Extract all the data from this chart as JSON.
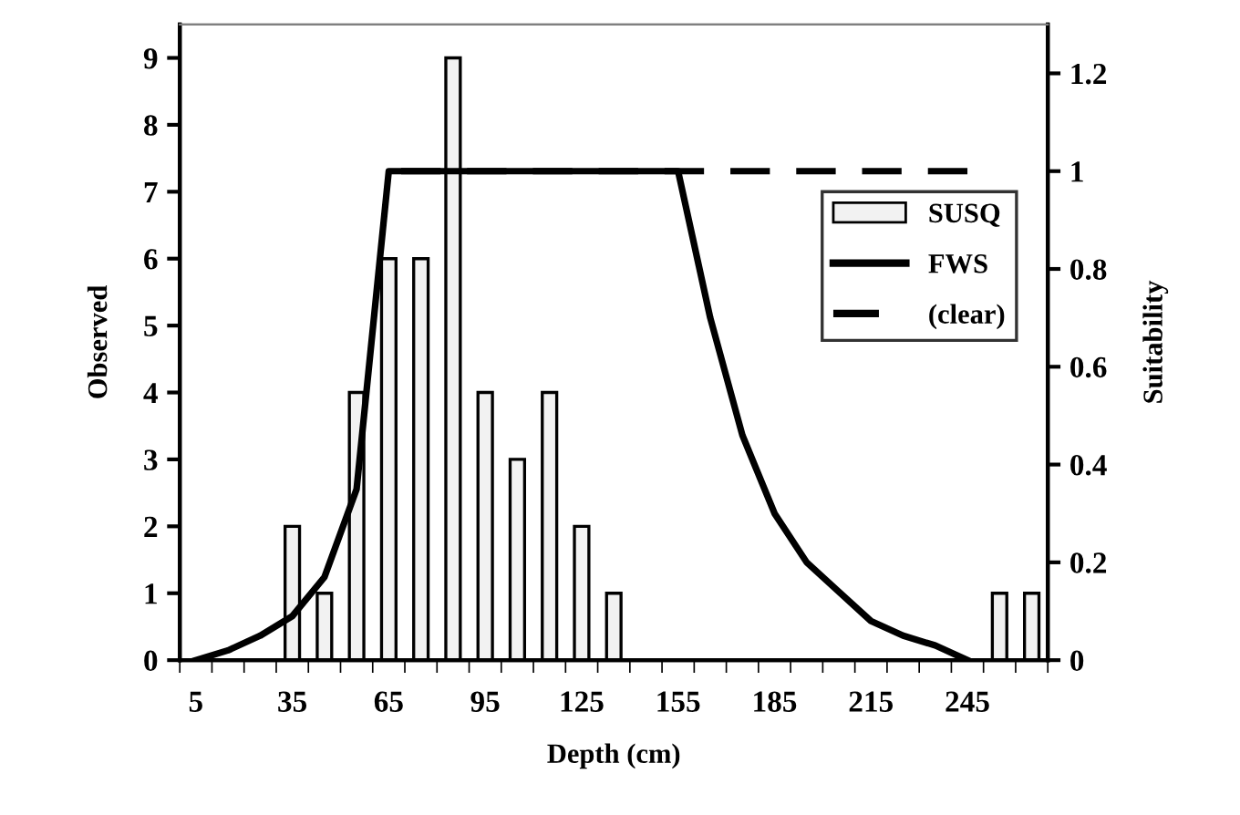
{
  "chart_data": {
    "type": "bar",
    "xlabel": "Depth (cm)",
    "ylabel": "Observed",
    "y2label": "Suitability",
    "categories": [
      "5",
      null,
      null,
      "35",
      null,
      null,
      "65",
      null,
      null,
      "95",
      null,
      null,
      "125",
      null,
      null,
      "155",
      null,
      null,
      "185",
      null,
      null,
      "215",
      null,
      null,
      "245",
      null,
      null
    ],
    "series": [
      {
        "name": "SUSQ",
        "color": "#f2f2f2",
        "values": [
          null,
          null,
          null,
          2,
          1,
          4,
          6,
          6,
          9,
          4,
          3,
          4,
          2,
          1,
          null,
          null,
          null,
          null,
          null,
          null,
          null,
          null,
          null,
          null,
          null,
          1,
          1
        ]
      },
      {
        "name": "FWS",
        "type": "line",
        "axis": "y2",
        "color": "#000000",
        "line_style": "solid",
        "values": [
          0,
          0.02,
          0.05,
          0.09,
          0.17,
          0.35,
          1,
          1,
          1,
          1,
          1,
          1,
          1,
          1,
          1,
          1,
          0.7,
          0.46,
          0.3,
          0.2,
          0.14,
          0.08,
          0.05,
          0.03,
          0,
          null,
          null
        ]
      },
      {
        "name": "(clear)",
        "type": "line",
        "axis": "y2",
        "color": "#000000",
        "line_style": "dashed",
        "values": [
          null,
          null,
          null,
          null,
          null,
          null,
          1,
          1,
          1,
          1,
          1,
          1,
          1,
          1,
          1,
          1,
          1,
          1,
          1,
          1,
          1,
          1,
          1,
          1,
          1,
          null,
          null
        ]
      }
    ],
    "ylim": [
      0,
      9.5
    ],
    "yticks": [
      0,
      1,
      2,
      3,
      4,
      5,
      6,
      7,
      8,
      9
    ],
    "y2lim": [
      0,
      1.3
    ],
    "y2ticks": [
      0,
      0.2,
      0.4,
      0.6,
      0.8,
      1,
      1.2
    ],
    "legend": "right",
    "grid": false
  }
}
